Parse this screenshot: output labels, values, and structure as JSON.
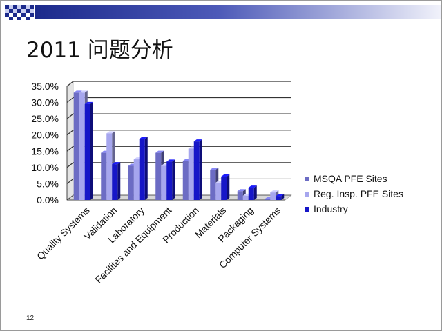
{
  "slide": {
    "title": "2011 问题分析",
    "page_number": "12"
  },
  "colors": {
    "band_dark": "#1c2a8c",
    "band_light": "#c9cef0"
  },
  "chart_data": {
    "type": "bar",
    "style": "3d-clustered",
    "categories": [
      "Quality Systems",
      "Validation",
      "Laboratory",
      "Facilites and Equipment",
      "Production",
      "Materials",
      "Packaging",
      "Computer Systems"
    ],
    "series": [
      {
        "name": "MSQA PFE Sites",
        "color": "#6c6cc4",
        "values": [
          33.0,
          14.5,
          10.5,
          14.5,
          12.0,
          9.3,
          2.7,
          0.3
        ]
      },
      {
        "name": "Reg. Insp. PFE Sites",
        "color": "#a6a6ee",
        "values": [
          33.0,
          20.5,
          12.5,
          10.5,
          15.8,
          5.3,
          1.3,
          2.3
        ]
      },
      {
        "name": "Industry",
        "color": "#1616c8",
        "values": [
          29.5,
          11.0,
          18.8,
          11.8,
          18.0,
          7.2,
          3.8,
          1.2
        ]
      }
    ],
    "ylim": [
      0,
      35
    ],
    "yticks": [
      "0.0%",
      "5.0%",
      "10.0%",
      "15.0%",
      "20.0%",
      "25.0%",
      "30.0%",
      "35.0%"
    ],
    "grid": true,
    "legend_position": "right"
  }
}
